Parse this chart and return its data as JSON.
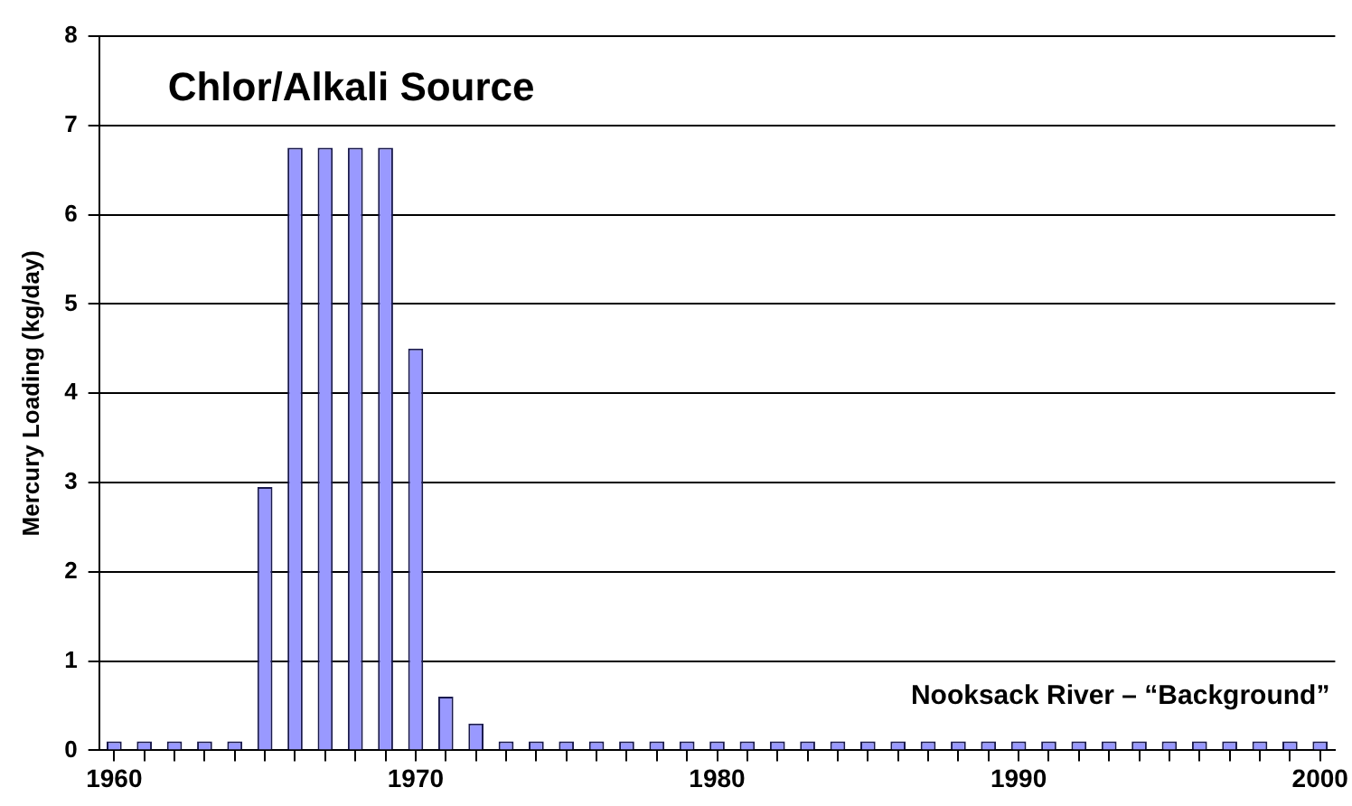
{
  "chart_data": {
    "type": "bar",
    "ylabel": "Mercury Loading (kg/day)",
    "categories": [
      "1960",
      null,
      null,
      null,
      null,
      null,
      null,
      null,
      null,
      null,
      "1970",
      null,
      null,
      null,
      null,
      null,
      null,
      null,
      null,
      null,
      "1980",
      null,
      null,
      null,
      null,
      null,
      null,
      null,
      null,
      null,
      "1990",
      null,
      null,
      null,
      null,
      null,
      null,
      null,
      null,
      null,
      "2000"
    ],
    "values": [
      0.1,
      0.1,
      0.1,
      0.1,
      0.1,
      2.95,
      6.75,
      6.75,
      6.75,
      6.75,
      4.5,
      0.6,
      0.3,
      0.1,
      0.1,
      0.1,
      0.1,
      0.1,
      0.1,
      0.1,
      0.1,
      0.1,
      0.1,
      0.1,
      0.1,
      0.1,
      0.1,
      0.1,
      0.1,
      0.1,
      0.1,
      0.1,
      0.1,
      0.1,
      0.1,
      0.1,
      0.1,
      0.1,
      0.1,
      0.1,
      0.1
    ],
    "color": "#9999ff",
    "ylim": [
      0,
      8
    ],
    "yticks": [
      0,
      1,
      2,
      3,
      4,
      5,
      6,
      7,
      8
    ],
    "grid": "y",
    "annotations": [
      "Chlor/Alkali Source",
      "Nooksack River – “Background”"
    ]
  }
}
